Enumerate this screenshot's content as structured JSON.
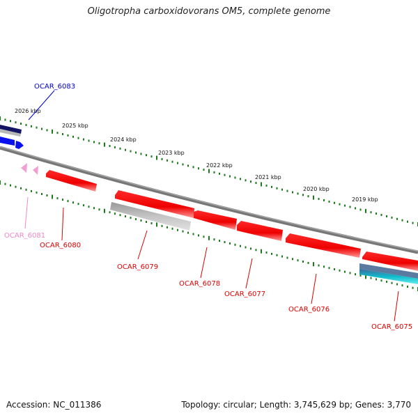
{
  "title": "Oligotropha carboxidovorans OM5, complete genome",
  "footer": {
    "accession": "Accession: NC_011386",
    "topology": "Topology: circular; Length: 3,745,629 bp; Genes: 3,770"
  },
  "kbp_marks": [
    "2026 kbp",
    "2025 kbp",
    "2024 kbp",
    "2023 kbp",
    "2022 kbp",
    "2021 kbp",
    "2020 kbp",
    "2019 kbp"
  ],
  "genes": [
    {
      "name": "OCAR_6083",
      "color": "#0000cc"
    },
    {
      "name": "OCAR_6081",
      "color": "#ee88c8"
    },
    {
      "name": "OCAR_6080",
      "color": "#dd0000"
    },
    {
      "name": "OCAR_6079",
      "color": "#dd0000"
    },
    {
      "name": "OCAR_6078",
      "color": "#dd0000"
    },
    {
      "name": "OCAR_6077",
      "color": "#dd0000"
    },
    {
      "name": "OCAR_6076",
      "color": "#dd0000"
    },
    {
      "name": "OCAR_6075",
      "color": "#dd0000"
    }
  ],
  "colors": {
    "backbone": "#888888",
    "tick": "#1a7a1a",
    "cds": "#ee0000",
    "gray_feature": "#bbbbbb",
    "blue_feature": "#0a10ee",
    "navy_feature": "#141464",
    "cyan_feature": "#11cccc",
    "pink_feature": "#f0a0d0"
  }
}
